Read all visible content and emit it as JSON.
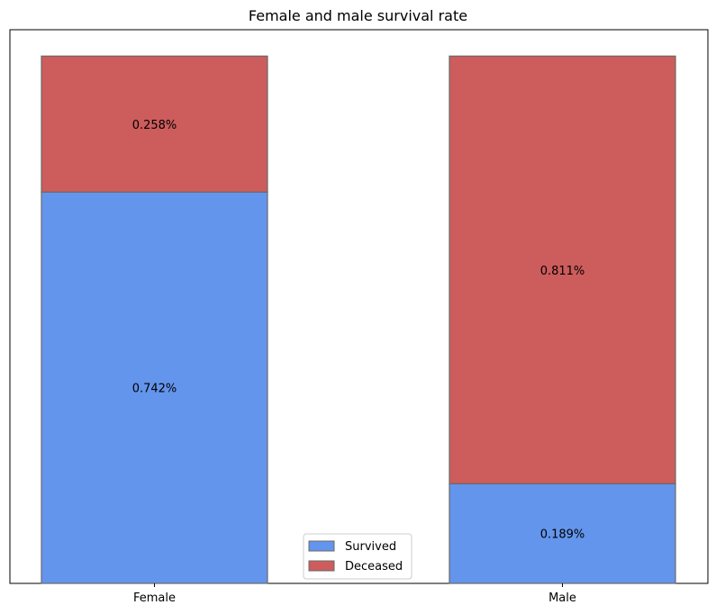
{
  "chart_data": {
    "type": "bar",
    "stacked": true,
    "title": "Female and male survival rate",
    "categories": [
      "Female",
      "Male"
    ],
    "series": [
      {
        "name": "Survived",
        "values": [
          0.742,
          0.189
        ],
        "labels": [
          "0.742%",
          "0.189%"
        ],
        "color": "#6495ED"
      },
      {
        "name": "Deceased",
        "values": [
          0.258,
          0.811
        ],
        "labels": [
          "0.258%",
          "0.811%"
        ],
        "color": "#CD5C5C"
      }
    ],
    "ylim": [
      0,
      1.05
    ],
    "yaxis_visible": false,
    "grid": false,
    "legend": "lower-center",
    "edge_color": "#696969"
  }
}
